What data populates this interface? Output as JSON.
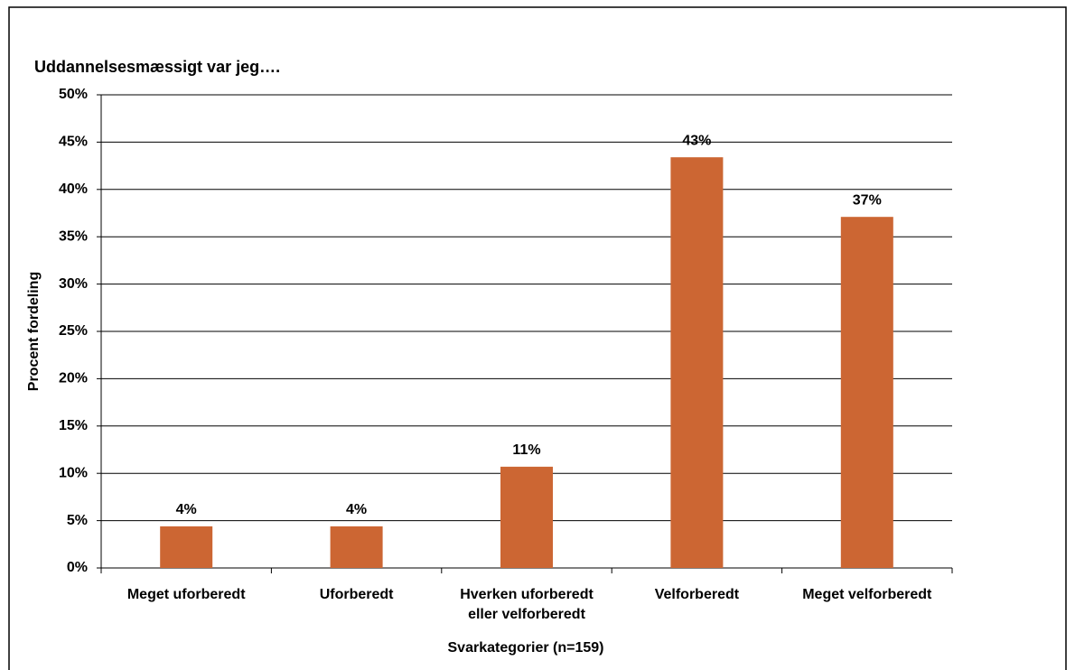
{
  "chart_data": {
    "type": "bar",
    "title": "Uddannelsesmæssigt var jeg….",
    "x_label": "Svarkategorier (n=159)",
    "y_label": "Procent fordeling",
    "categories": [
      "Meget uforberedt",
      "Uforberedt",
      "Hverken uforberedt eller velforberedt",
      "Velforberedt",
      "Meget velforberedt"
    ],
    "values": [
      4.4,
      4.4,
      10.7,
      43.4,
      37.1
    ],
    "value_labels": [
      "4%",
      "4%",
      "11%",
      "43%",
      "37%"
    ],
    "color": "#cc6633",
    "ylim": [
      0,
      50
    ],
    "yticks": [
      {
        "value": 0,
        "label": "0%"
      },
      {
        "value": 5,
        "label": "5%"
      },
      {
        "value": 10,
        "label": "10%"
      },
      {
        "value": 15,
        "label": "15%"
      },
      {
        "value": 20,
        "label": "20%"
      },
      {
        "value": 25,
        "label": "25%"
      },
      {
        "value": 30,
        "label": "30%"
      },
      {
        "value": 35,
        "label": "35%"
      },
      {
        "value": 40,
        "label": "40%"
      },
      {
        "value": 45,
        "label": "45%"
      },
      {
        "value": 50,
        "label": "50%"
      }
    ],
    "grid": true
  }
}
